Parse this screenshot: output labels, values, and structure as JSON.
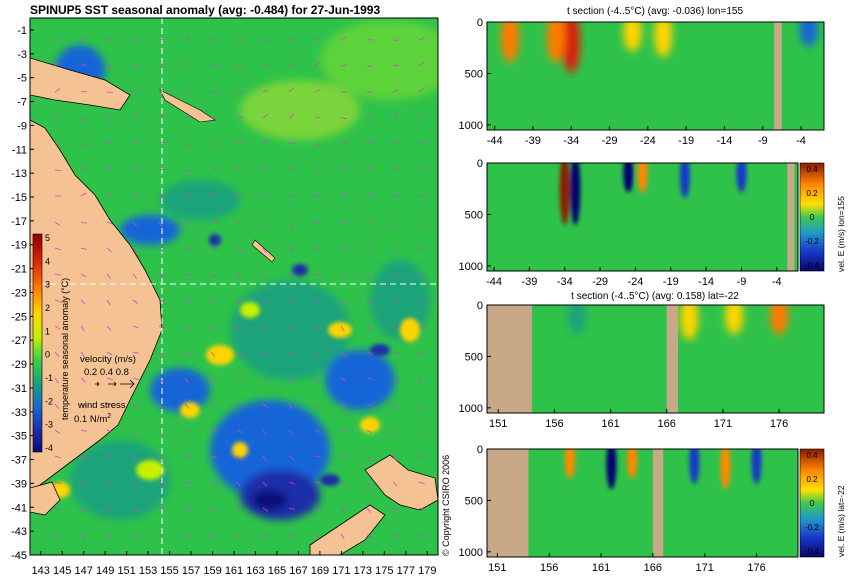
{
  "map": {
    "title": "SPINUP5 SST seasonal anomaly (avg: -0.484) for 27-Jun-1993",
    "lat_ticks": [
      "-1",
      "-3",
      "-5",
      "-7",
      "-9",
      "-11",
      "-13",
      "-15",
      "-17",
      "-19",
      "-21",
      "-23",
      "-25",
      "-27",
      "-29",
      "-31",
      "-33",
      "-35",
      "-37",
      "-39",
      "-41",
      "-43",
      "-45"
    ],
    "lon_ticks": [
      "143",
      "145",
      "147",
      "149",
      "151",
      "153",
      "155",
      "157",
      "159",
      "161",
      "163",
      "165",
      "167",
      "169",
      "171",
      "173",
      "175",
      "177",
      "179"
    ],
    "colorbar": {
      "label": "temperature seasonal anomaly (°C)",
      "ticks": [
        "5",
        "4",
        "3",
        "2",
        "1",
        "0",
        "-1",
        "-2",
        "-3",
        "-4"
      ],
      "colors": [
        "#8b0000",
        "#d9230f",
        "#ff7a00",
        "#ffd400",
        "#c6f000",
        "#37d046",
        "#1aa37a",
        "#1565d8",
        "#1a2fa8",
        "#0a0a78"
      ]
    },
    "velocity_key": {
      "title": "velocity (m/s)",
      "values": "0.2 0.4 0.8"
    },
    "wind_key": {
      "title": "wind stress",
      "value": "0.1 N/m",
      "sup": "2"
    },
    "crosshair": {
      "lon": 155,
      "lat": -22
    },
    "colors": {
      "land": "#f5c293",
      "ocean": "#2fc24a",
      "arrow": "#cc44cc"
    }
  },
  "copyright": "© Copyright CSIRO 2006",
  "chart_data": [
    {
      "type": "heatmap",
      "title": "t section (-4..5°C) (avg: -0.036) lon=155",
      "x_ticks": [
        "-44",
        "-39",
        "-34",
        "-29",
        "-24",
        "-19",
        "-14",
        "-9",
        "-4"
      ],
      "y_ticks": [
        "0",
        "500",
        "1000"
      ],
      "xlim": [
        -45,
        -1
      ],
      "ylim": [
        1050,
        0
      ],
      "features": [
        {
          "x": -34,
          "depth": 400,
          "value": 4.5
        },
        {
          "x": -36,
          "depth": 300,
          "value": 2.5
        },
        {
          "x": -42,
          "depth": 300,
          "value": 2.5
        },
        {
          "x": -26,
          "depth": 200,
          "value": 2.0
        },
        {
          "x": -22,
          "depth": 250,
          "value": 1.5
        },
        {
          "x": -3,
          "depth": 150,
          "value": -2.0
        }
      ],
      "land": [
        {
          "x0": -7.5,
          "x1": -6.5
        }
      ]
    },
    {
      "type": "heatmap",
      "title": "",
      "x_ticks": [
        "-44",
        "-39",
        "-34",
        "-29",
        "-24",
        "-19",
        "-14",
        "-9",
        "-4"
      ],
      "y_ticks": [
        "0",
        "500",
        "1000"
      ],
      "xlim": [
        -45,
        -1
      ],
      "ylim": [
        1050,
        0
      ],
      "colorbar": {
        "label": "vel. E (m/s) lon=155",
        "ticks": [
          "0.4",
          "0.2",
          "0",
          "-0.2",
          "-0.4"
        ]
      },
      "features": [
        {
          "x": -34,
          "depth": 500,
          "value": 0.45
        },
        {
          "x": -32.5,
          "depth": 500,
          "value": -0.45
        },
        {
          "x": -25,
          "depth": 200,
          "value": -0.4
        },
        {
          "x": -23,
          "depth": 200,
          "value": 0.3
        },
        {
          "x": -17,
          "depth": 250,
          "value": -0.3
        },
        {
          "x": -9,
          "depth": 200,
          "value": -0.3
        }
      ],
      "land": [
        {
          "x0": -2.5,
          "x1": -1.5
        }
      ]
    },
    {
      "type": "heatmap",
      "title": "t section (-4..5°C) (avg: 0.158) lat=-22",
      "x_ticks": [
        "151",
        "156",
        "161",
        "166",
        "171",
        "176"
      ],
      "y_ticks": [
        "0",
        "500",
        "1000"
      ],
      "xlim": [
        150,
        180
      ],
      "ylim": [
        1050,
        0
      ],
      "features": [
        {
          "x": 176,
          "depth": 200,
          "value": 2.5
        },
        {
          "x": 168,
          "depth": 250,
          "value": 1.5
        },
        {
          "x": 172,
          "depth": 200,
          "value": 1.5
        },
        {
          "x": 158,
          "depth": 200,
          "value": -1.0
        }
      ],
      "land": [
        {
          "x0": 150,
          "x1": 154
        },
        {
          "x0": 166,
          "x1": 167
        }
      ]
    },
    {
      "type": "heatmap",
      "title": "",
      "x_ticks": [
        "151",
        "156",
        "161",
        "166",
        "171",
        "176"
      ],
      "y_ticks": [
        "0",
        "500",
        "1000"
      ],
      "xlim": [
        150,
        180
      ],
      "ylim": [
        1050,
        0
      ],
      "colorbar": {
        "label": "vel. E (m/s) lat=-22",
        "ticks": [
          "0.4",
          "0.2",
          "0",
          "-0.2",
          "-0.4"
        ]
      },
      "features": [
        {
          "x": 162,
          "depth": 300,
          "value": -0.45
        },
        {
          "x": 158,
          "depth": 200,
          "value": 0.3
        },
        {
          "x": 164,
          "depth": 200,
          "value": 0.35
        },
        {
          "x": 170,
          "depth": 250,
          "value": -0.3
        },
        {
          "x": 173,
          "depth": 300,
          "value": 0.3
        },
        {
          "x": 176,
          "depth": 250,
          "value": -0.25
        }
      ],
      "land": [
        {
          "x0": 150,
          "x1": 154
        },
        {
          "x0": 166,
          "x1": 167
        }
      ]
    }
  ]
}
